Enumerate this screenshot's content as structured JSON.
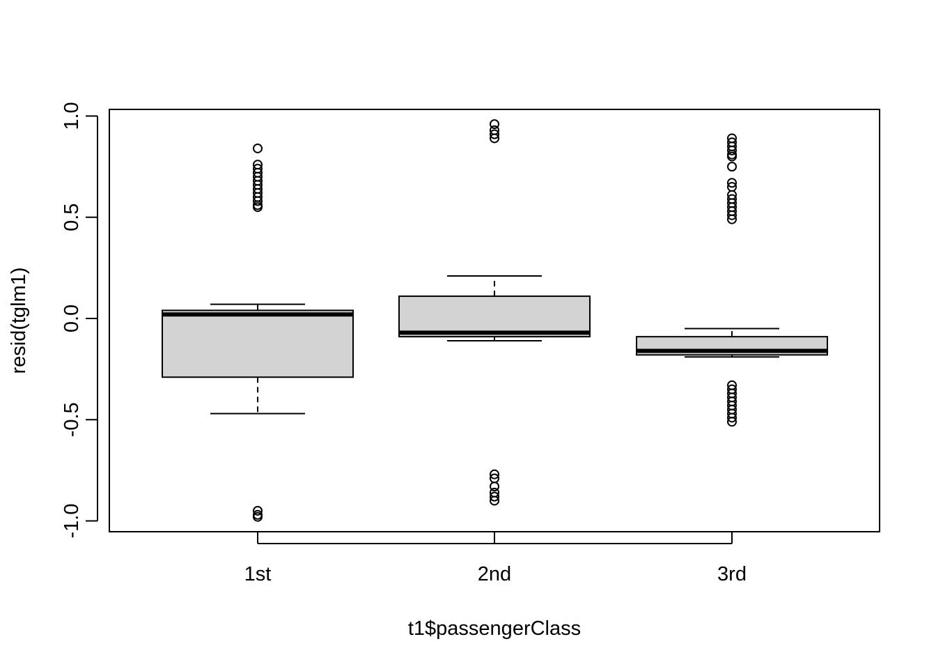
{
  "chart_data": {
    "type": "boxplot",
    "title": "",
    "xlabel": "t1$passengerClass",
    "ylabel": "resid(tglm1)",
    "ylim": [
      -1.06,
      1.03
    ],
    "yticks": [
      -1.0,
      -0.5,
      0.0,
      0.5,
      1.0
    ],
    "ytick_labels": [
      "-1.0",
      "-0.5",
      "0.0",
      "0.5",
      "1.0"
    ],
    "categories": [
      "1st",
      "2nd",
      "3rd"
    ],
    "box_color": "#d3d3d3",
    "boxes": [
      {
        "category": "1st",
        "whisker_low": -0.47,
        "q1": -0.29,
        "median": 0.02,
        "q3": 0.04,
        "whisker_high": 0.07,
        "outliers": [
          0.84,
          0.76,
          0.74,
          0.72,
          0.7,
          0.68,
          0.66,
          0.64,
          0.62,
          0.6,
          0.58,
          0.56,
          0.55,
          -0.95,
          -0.97,
          -0.98
        ]
      },
      {
        "category": "2nd",
        "whisker_low": -0.11,
        "q1": -0.09,
        "median": -0.07,
        "q3": 0.11,
        "whisker_high": 0.21,
        "outliers": [
          0.96,
          0.93,
          0.91,
          0.89,
          -0.77,
          -0.79,
          -0.83,
          -0.86,
          -0.88,
          -0.9
        ]
      },
      {
        "category": "3rd",
        "whisker_low": -0.19,
        "q1": -0.18,
        "median": -0.16,
        "q3": -0.09,
        "whisker_high": -0.05,
        "outliers": [
          0.89,
          0.87,
          0.85,
          0.83,
          0.81,
          0.8,
          0.75,
          0.67,
          0.65,
          0.61,
          0.59,
          0.57,
          0.55,
          0.53,
          0.51,
          0.49,
          -0.33,
          -0.35,
          -0.37,
          -0.39,
          -0.41,
          -0.43,
          -0.45,
          -0.47,
          -0.49,
          -0.51
        ]
      }
    ]
  }
}
